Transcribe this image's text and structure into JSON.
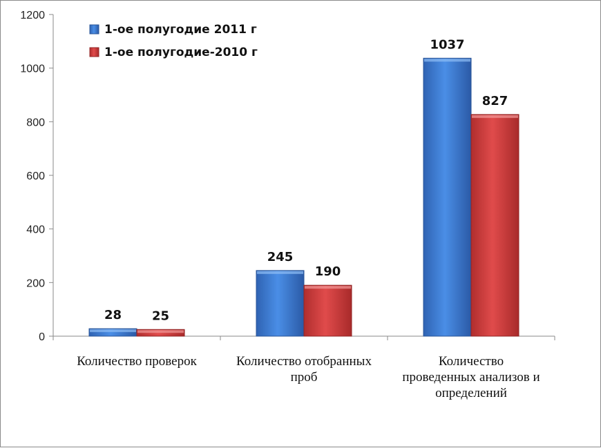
{
  "chart_data": {
    "type": "bar",
    "title": "",
    "xlabel": "",
    "ylabel": "",
    "ylim": [
      0,
      1200
    ],
    "yticks": [
      0,
      200,
      400,
      600,
      800,
      1000,
      1200
    ],
    "grid": false,
    "legend_position": "top-left",
    "categories": [
      [
        "Количество проверок"
      ],
      [
        "Количество отобранных",
        "проб"
      ],
      [
        "Количество",
        "проведенных анализов и",
        "определений"
      ]
    ],
    "series": [
      {
        "name": "1-ое полугодие 2011 г",
        "color": "#3a78d0",
        "values": [
          28,
          245,
          1037
        ]
      },
      {
        "name": "1-ое полугодие-2010 г",
        "color": "#c83a3a",
        "values": [
          25,
          190,
          827
        ]
      }
    ]
  }
}
